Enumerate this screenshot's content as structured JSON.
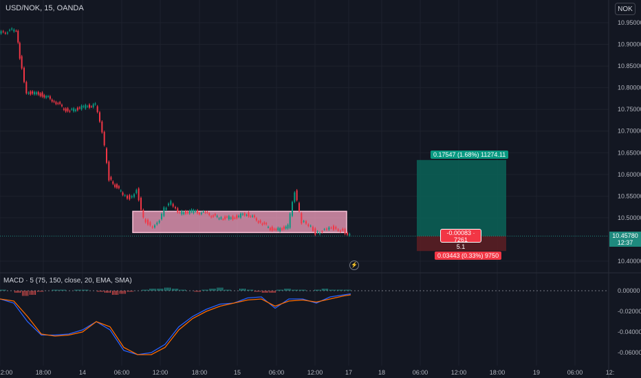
{
  "header": {
    "symbol": "USD/NOK, 15, OANDA",
    "currency": "NOK"
  },
  "indicator": {
    "title": "MACD · 5 (75, 150, close, 20, EMA, SMA)"
  },
  "last_price": {
    "value": "10.45780",
    "countdown": "12:37"
  },
  "position_tool": {
    "target_label": "0.17547 (1.68%) 11274.11",
    "stop_label": "0.03443 (0.33%) 9750",
    "center_line1": "-0.00083 · 7261",
    "center_line2": "5.1",
    "entry": 10.4578,
    "target": 10.6333,
    "stop": 10.4234
  },
  "colors": {
    "background": "#131722",
    "up": "#089981",
    "down": "#f23645",
    "zone_fill": "#f7a1c0",
    "macd_line": "#2962ff",
    "signal_line": "#ff6d00"
  },
  "chart_data": [
    {
      "type": "line",
      "name": "price",
      "y_axis_ticks": [
        "10.95000",
        "10.90000",
        "10.85000",
        "10.80000",
        "10.75000",
        "10.70000",
        "10.65000",
        "10.60000",
        "10.55000",
        "10.50000",
        "10.40000"
      ],
      "x_axis_ticks": [
        "12:00",
        "18:00",
        "14",
        "06:00",
        "12:00",
        "18:00",
        "15",
        "06:00",
        "12:00",
        "17",
        "18",
        "06:00",
        "12:00",
        "18:00",
        "19",
        "06:00",
        "12:"
      ],
      "ylim": [
        10.38,
        10.985
      ],
      "x": [
        0,
        25,
        30,
        40,
        60,
        80,
        100,
        120,
        140,
        150,
        160,
        180,
        190,
        200,
        210,
        220,
        230,
        240,
        250,
        260,
        280,
        300,
        320,
        340,
        360,
        380,
        400,
        420,
        430,
        440,
        450,
        460,
        470,
        480,
        490,
        500,
        510
      ],
      "values": [
        10.925,
        10.935,
        10.87,
        10.79,
        10.785,
        10.77,
        10.745,
        10.755,
        10.76,
        10.7,
        10.59,
        10.555,
        10.545,
        10.565,
        10.5,
        10.48,
        10.485,
        10.52,
        10.535,
        10.51,
        10.515,
        10.51,
        10.5,
        10.5,
        10.51,
        10.49,
        10.47,
        10.48,
        10.56,
        10.49,
        10.485,
        10.465,
        10.47,
        10.48,
        10.475,
        10.47,
        10.46
      ],
      "zone": {
        "low": 10.466,
        "high": 10.515
      },
      "grid": true
    },
    {
      "type": "line",
      "name": "macd",
      "y_axis_ticks": [
        "0.00000",
        "-0.02000",
        "-0.04000",
        "-0.06000"
      ],
      "ylim": [
        -0.068,
        0.007
      ],
      "series": [
        {
          "x": [
            0,
            20,
            40,
            60,
            80,
            100,
            120,
            140,
            160,
            180,
            200,
            220,
            240,
            260,
            280,
            300,
            320,
            340,
            360,
            380,
            400,
            420,
            440,
            460,
            480,
            500,
            510
          ],
          "values": [
            -0.008,
            -0.012,
            -0.03,
            -0.043,
            -0.043,
            -0.042,
            -0.038,
            -0.03,
            -0.038,
            -0.058,
            -0.062,
            -0.06,
            -0.052,
            -0.035,
            -0.025,
            -0.018,
            -0.013,
            -0.012,
            -0.007,
            -0.006,
            -0.017,
            -0.008,
            -0.008,
            -0.012,
            -0.006,
            -0.004,
            -0.003
          ]
        },
        {
          "x": [
            0,
            20,
            40,
            60,
            80,
            100,
            120,
            140,
            160,
            180,
            200,
            220,
            240,
            260,
            280,
            300,
            320,
            340,
            360,
            380,
            400,
            420,
            440,
            460,
            480,
            500,
            510
          ],
          "values": [
            -0.008,
            -0.01,
            -0.025,
            -0.042,
            -0.044,
            -0.043,
            -0.04,
            -0.03,
            -0.035,
            -0.055,
            -0.062,
            -0.062,
            -0.055,
            -0.038,
            -0.027,
            -0.02,
            -0.015,
            -0.012,
            -0.009,
            -0.008,
            -0.015,
            -0.01,
            -0.009,
            -0.011,
            -0.008,
            -0.005,
            -0.004
          ]
        }
      ],
      "histogram": [
        1,
        0,
        -2,
        -5,
        -4,
        -1,
        0,
        1,
        1,
        0,
        1,
        1,
        0,
        -1,
        -2,
        -4,
        -3,
        -1,
        0,
        1,
        2,
        2,
        3,
        2,
        1,
        0,
        -1,
        1,
        2,
        3,
        1,
        0,
        2,
        1,
        -1,
        -2,
        -2,
        1,
        2,
        1,
        1,
        0,
        1,
        2,
        1,
        1,
        1
      ]
    }
  ]
}
